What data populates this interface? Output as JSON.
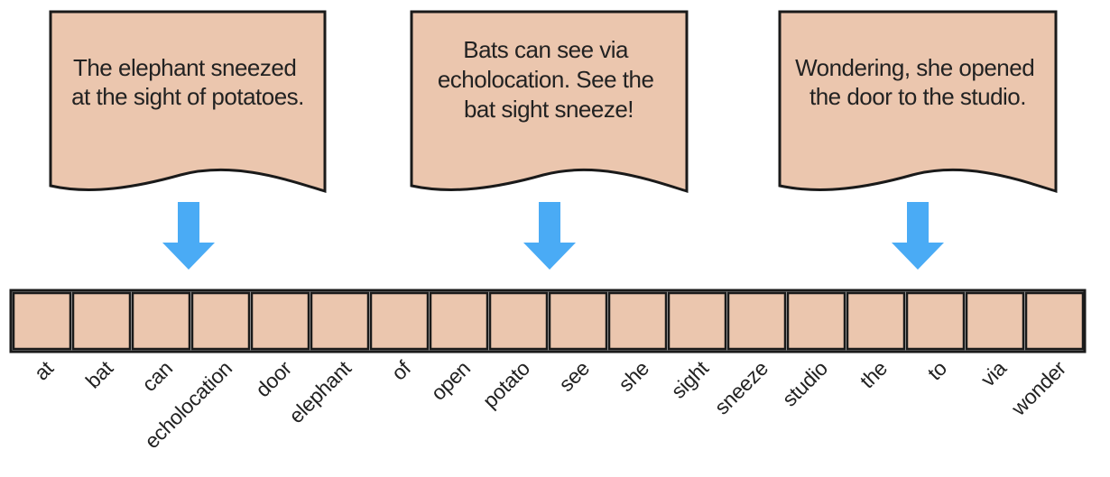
{
  "documents": [
    {
      "lines": [
        "The elephant sneezed",
        "at the sight of potatoes."
      ]
    },
    {
      "lines": [
        "Bats can see via",
        "echolocation. See the",
        "bat sight sneeze!"
      ]
    },
    {
      "lines": [
        "Wondering, she opened",
        "the door to the studio."
      ]
    }
  ],
  "vocabulary": [
    "at",
    "bat",
    "can",
    "echolocation",
    "door",
    "elephant",
    "of",
    "open",
    "potato",
    "see",
    "she",
    "sight",
    "sneeze",
    "studio",
    "the",
    "to",
    "via",
    "wonder"
  ],
  "colors": {
    "document_fill": "#ebc6ae",
    "cell_fill": "#ebc6ae",
    "outline": "#1a1a1a",
    "arrow": "#4aabf5"
  },
  "icons": {
    "arrow": "arrow-down-icon"
  }
}
